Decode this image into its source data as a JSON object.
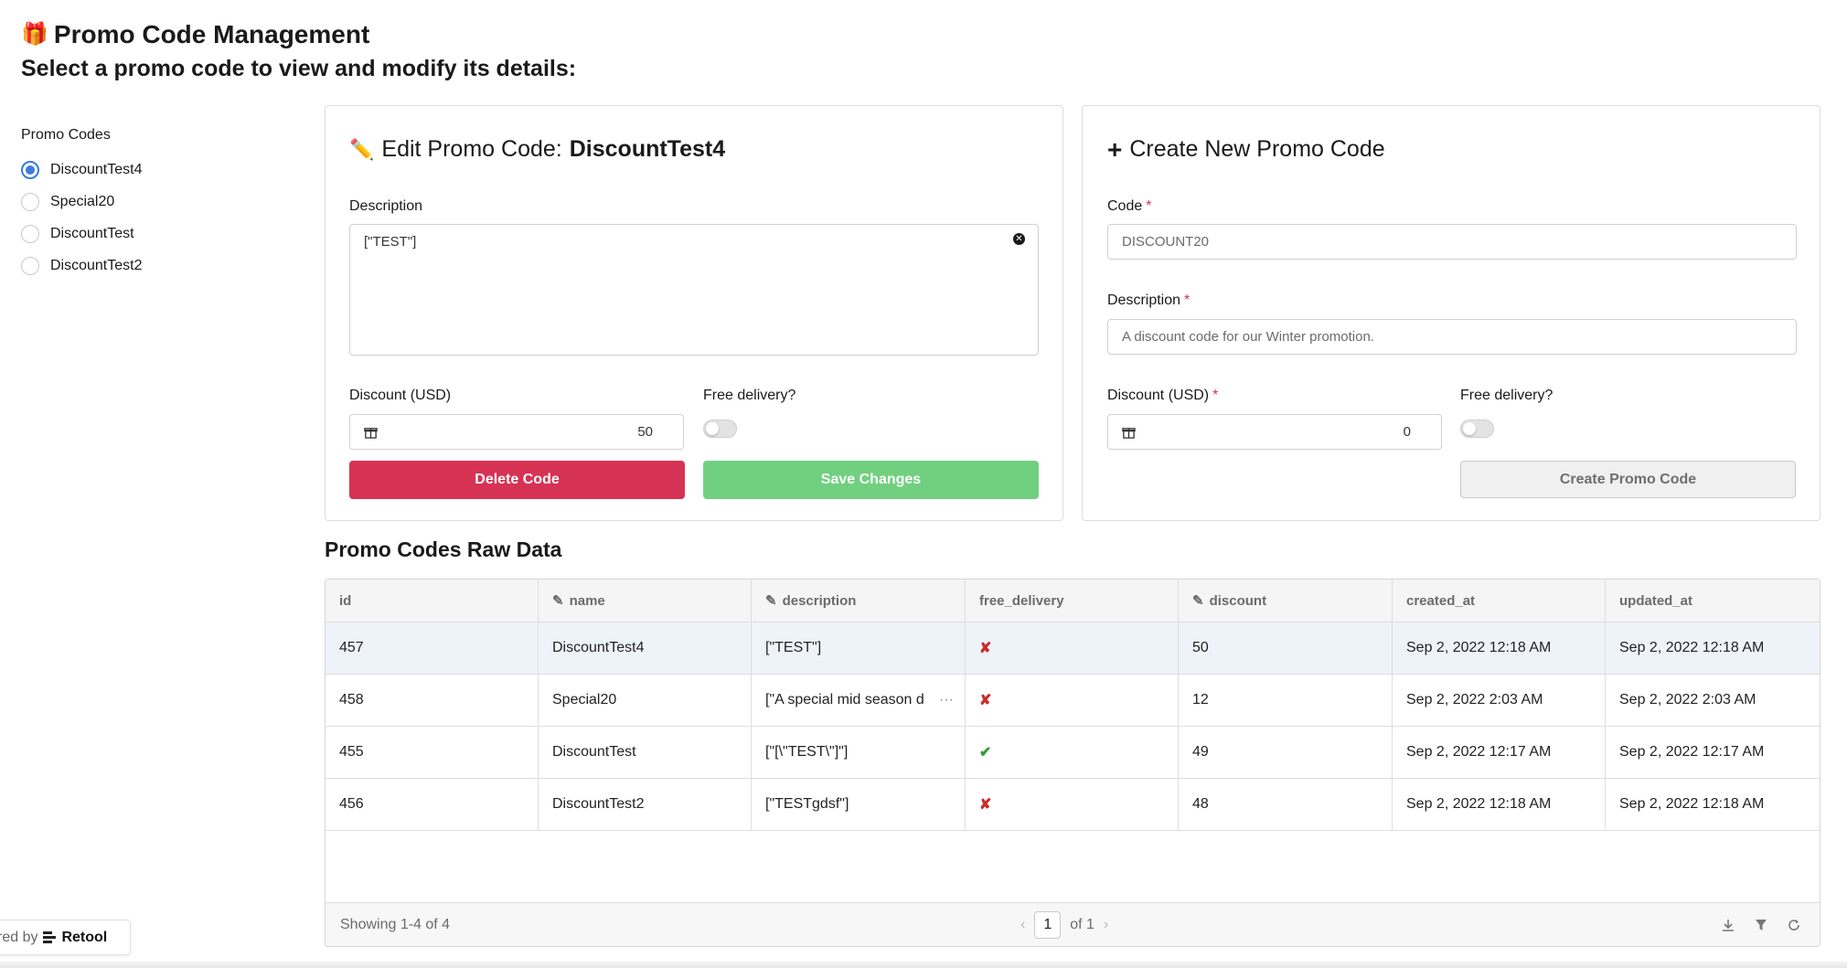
{
  "header": {
    "title": "Promo Code Management",
    "subtitle": "Select a promo code to view and modify its details:"
  },
  "promo_list": {
    "label": "Promo Codes",
    "items": [
      {
        "label": "DiscountTest4",
        "selected": true
      },
      {
        "label": "Special20",
        "selected": false
      },
      {
        "label": "DiscountTest",
        "selected": false
      },
      {
        "label": "DiscountTest2",
        "selected": false
      }
    ]
  },
  "edit": {
    "title_prefix": "Edit Promo Code:",
    "code": "DiscountTest4",
    "description_label": "Description",
    "description_value": "[\"TEST\"]",
    "discount_label": "Discount (USD)",
    "discount_value": "50",
    "free_delivery_label": "Free delivery?",
    "free_delivery": false,
    "delete_label": "Delete Code",
    "save_label": "Save Changes"
  },
  "create": {
    "title": "Create New Promo Code",
    "code_label": "Code",
    "code_placeholder": "DISCOUNT20",
    "description_label": "Description",
    "description_placeholder": "A discount code for our Winter promotion.",
    "discount_label": "Discount (USD)",
    "discount_value": "0",
    "free_delivery_label": "Free delivery?",
    "free_delivery": false,
    "create_label": "Create Promo Code",
    "required_mark": "*"
  },
  "table": {
    "title": "Promo Codes Raw Data",
    "columns": [
      "id",
      "name",
      "description",
      "free_delivery",
      "discount",
      "created_at",
      "updated_at"
    ],
    "editable_columns": [
      "name",
      "description",
      "discount"
    ],
    "rows": [
      {
        "id": "457",
        "name": "DiscountTest4",
        "description": "[\"TEST\"]",
        "free_delivery": "✘",
        "discount": "50",
        "created_at": "Sep 2, 2022 12:18 AM",
        "updated_at": "Sep 2, 2022 12:18 AM"
      },
      {
        "id": "458",
        "name": "Special20",
        "description": "[\"A special mid season d",
        "free_delivery": "✘",
        "discount": "12",
        "created_at": "Sep 2, 2022 2:03 AM",
        "updated_at": "Sep 2, 2022 2:03 AM"
      },
      {
        "id": "455",
        "name": "DiscountTest",
        "description": "[\"[\\\"TEST\\\"]\"]",
        "free_delivery": "✔",
        "discount": "49",
        "created_at": "Sep 2, 2022 12:17 AM",
        "updated_at": "Sep 2, 2022 12:17 AM"
      },
      {
        "id": "456",
        "name": "DiscountTest2",
        "description": "[\"TESTgdsf\"]",
        "free_delivery": "✘",
        "discount": "48",
        "created_at": "Sep 2, 2022 12:18 AM",
        "updated_at": "Sep 2, 2022 12:18 AM"
      }
    ],
    "footer_text": "Showing 1-4 of 4",
    "page": "1",
    "page_of": "of 1"
  },
  "badge": {
    "prefix": "red by",
    "brand": "Retool"
  },
  "colors": {
    "danger": "#d63354",
    "success": "#71d07f",
    "accent": "#3b7ddd"
  }
}
